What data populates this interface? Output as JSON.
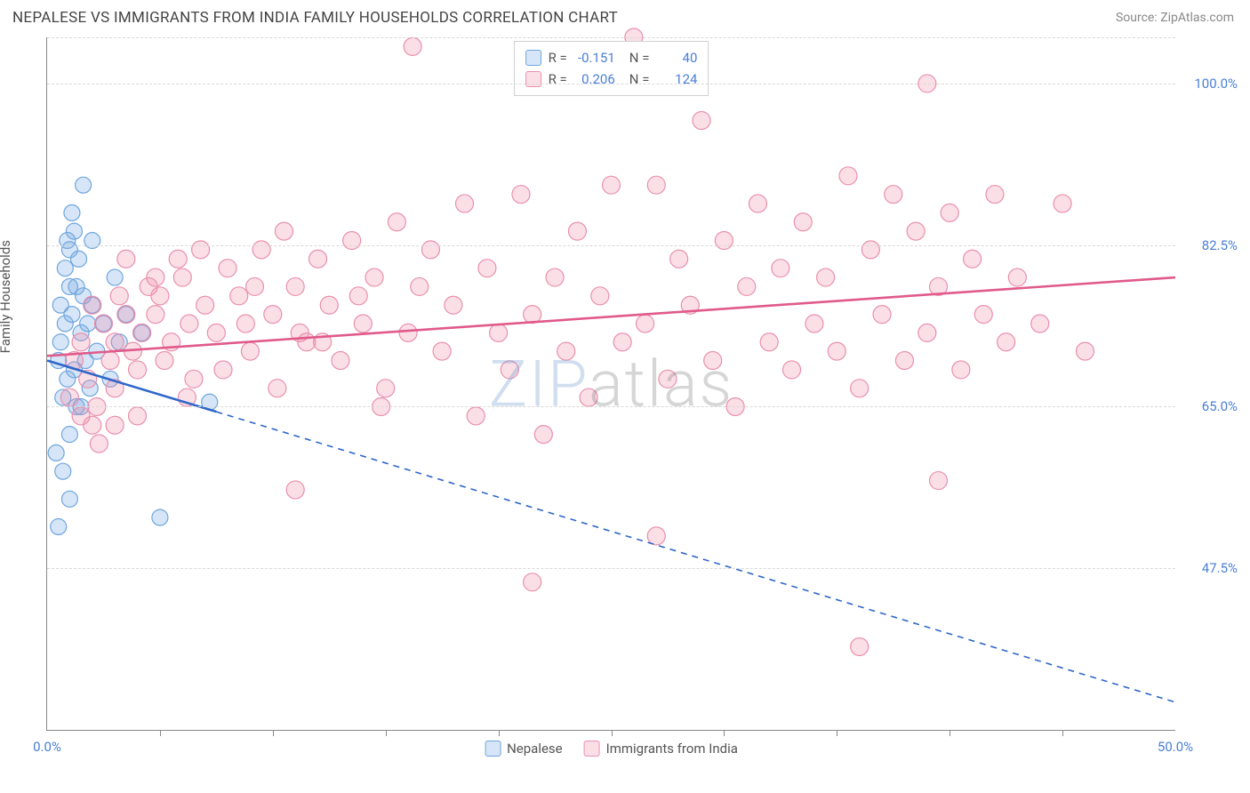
{
  "header": {
    "title": "NEPALESE VS IMMIGRANTS FROM INDIA FAMILY HOUSEHOLDS CORRELATION CHART",
    "source": "Source: ZipAtlas.com"
  },
  "watermark": {
    "part1": "ZIP",
    "part2": "atlas"
  },
  "chart": {
    "type": "scatter",
    "ylabel": "Family Households",
    "xlim": [
      0,
      50
    ],
    "ylim": [
      30,
      105
    ],
    "background_color": "#ffffff",
    "grid_color": "#d9d9d9",
    "axis_color": "#888888",
    "tick_label_color": "#4a7fd6",
    "tick_label_fontsize": 15,
    "y_ticks": [
      {
        "value": 47.5,
        "label": "47.5%"
      },
      {
        "value": 65.0,
        "label": "65.0%"
      },
      {
        "value": 82.5,
        "label": "82.5%"
      },
      {
        "value": 100.0,
        "label": "100.0%"
      },
      {
        "value": 105.0,
        "label": ""
      }
    ],
    "x_ticks_minor": [
      5,
      10,
      15,
      20,
      25,
      30,
      35,
      40,
      45
    ],
    "x_ticks_labeled": [
      {
        "value": 0,
        "label": "0.0%"
      },
      {
        "value": 50,
        "label": "50.0%"
      }
    ],
    "series": [
      {
        "id": "nepalese",
        "name": "Nepalese",
        "color_fill": "rgba(120,170,230,0.30)",
        "color_stroke": "#6fa6dd",
        "trend_color": "#2f67c9",
        "trend_solid_until_x": 7.5,
        "trend": {
          "x0": 0,
          "y0": 70.0,
          "x1": 50,
          "y1": 33.0
        },
        "R": "-0.151",
        "N": "40",
        "marker_radius": 9,
        "points": [
          [
            0.5,
            70
          ],
          [
            0.6,
            72
          ],
          [
            0.7,
            66
          ],
          [
            0.8,
            80
          ],
          [
            0.9,
            83
          ],
          [
            1.0,
            78
          ],
          [
            1.1,
            75
          ],
          [
            1.2,
            69
          ],
          [
            1.0,
            62
          ],
          [
            1.3,
            65
          ],
          [
            1.5,
            73
          ],
          [
            1.6,
            77
          ],
          [
            1.8,
            74
          ],
          [
            0.4,
            60
          ],
          [
            0.7,
            58
          ],
          [
            1.0,
            55
          ],
          [
            2.0,
            76
          ],
          [
            2.2,
            71
          ],
          [
            2.5,
            74
          ],
          [
            2.8,
            68
          ],
          [
            3.0,
            79
          ],
          [
            3.2,
            72
          ],
          [
            3.5,
            75
          ],
          [
            1.2,
            84
          ],
          [
            1.4,
            81
          ],
          [
            1.1,
            86
          ],
          [
            0.6,
            76
          ],
          [
            0.9,
            68
          ],
          [
            1.7,
            70
          ],
          [
            1.9,
            67
          ],
          [
            0.5,
            52
          ],
          [
            2.0,
            83
          ],
          [
            4.2,
            73
          ],
          [
            5.0,
            53
          ],
          [
            1.3,
            78
          ],
          [
            1.5,
            65
          ],
          [
            0.8,
            74
          ],
          [
            1.0,
            82
          ],
          [
            7.2,
            65.5
          ],
          [
            1.6,
            89
          ]
        ]
      },
      {
        "id": "india",
        "name": "Immigrants from India",
        "color_fill": "rgba(240,140,170,0.28)",
        "color_stroke": "#e98fae",
        "trend_color": "#e05a8a",
        "trend_solid_until_x": 50,
        "trend": {
          "x0": 0,
          "y0": 70.5,
          "x1": 50,
          "y1": 79.0
        },
        "R": "0.206",
        "N": "124",
        "marker_radius": 10,
        "points": [
          [
            1.0,
            66
          ],
          [
            1.2,
            70
          ],
          [
            1.5,
            72
          ],
          [
            1.8,
            68
          ],
          [
            2.0,
            63
          ],
          [
            2.2,
            65
          ],
          [
            2.5,
            74
          ],
          [
            2.8,
            70
          ],
          [
            3.0,
            72
          ],
          [
            3.2,
            77
          ],
          [
            3.5,
            75
          ],
          [
            3.8,
            71
          ],
          [
            4.0,
            69
          ],
          [
            4.2,
            73
          ],
          [
            4.5,
            78
          ],
          [
            4.8,
            75
          ],
          [
            5.0,
            77
          ],
          [
            5.5,
            72
          ],
          [
            6.0,
            79
          ],
          [
            6.3,
            74
          ],
          [
            6.5,
            68
          ],
          [
            5.8,
            81
          ],
          [
            7.0,
            76
          ],
          [
            7.5,
            73
          ],
          [
            8.0,
            80
          ],
          [
            8.5,
            77
          ],
          [
            9.0,
            71
          ],
          [
            9.5,
            82
          ],
          [
            10.0,
            75
          ],
          [
            10.5,
            84
          ],
          [
            11.0,
            78
          ],
          [
            11.5,
            72
          ],
          [
            12.0,
            81
          ],
          [
            12.5,
            76
          ],
          [
            13.0,
            70
          ],
          [
            13.5,
            83
          ],
          [
            14.0,
            74
          ],
          [
            14.5,
            79
          ],
          [
            15.0,
            67
          ],
          [
            15.5,
            85
          ],
          [
            16.0,
            73
          ],
          [
            16.5,
            78
          ],
          [
            17.0,
            82
          ],
          [
            17.5,
            71
          ],
          [
            18.0,
            76
          ],
          [
            16.2,
            104
          ],
          [
            18.5,
            87
          ],
          [
            19.0,
            64
          ],
          [
            19.5,
            80
          ],
          [
            20.0,
            73
          ],
          [
            20.5,
            69
          ],
          [
            21.0,
            88
          ],
          [
            21.5,
            75
          ],
          [
            22.0,
            62
          ],
          [
            22.5,
            79
          ],
          [
            23.0,
            71
          ],
          [
            23.5,
            84
          ],
          [
            24.0,
            66
          ],
          [
            24.5,
            77
          ],
          [
            25.0,
            89
          ],
          [
            25.5,
            72
          ],
          [
            26.0,
            105
          ],
          [
            26.5,
            74
          ],
          [
            27.0,
            89
          ],
          [
            27.5,
            68
          ],
          [
            28.0,
            81
          ],
          [
            28.5,
            76
          ],
          [
            29.0,
            96
          ],
          [
            29.5,
            70
          ],
          [
            30.0,
            83
          ],
          [
            30.5,
            65
          ],
          [
            31.0,
            78
          ],
          [
            31.5,
            87
          ],
          [
            32.0,
            72
          ],
          [
            32.5,
            80
          ],
          [
            33.0,
            69
          ],
          [
            27.0,
            51
          ],
          [
            33.5,
            85
          ],
          [
            34.0,
            74
          ],
          [
            21.5,
            46
          ],
          [
            34.5,
            79
          ],
          [
            35.0,
            71
          ],
          [
            35.5,
            90
          ],
          [
            36.0,
            67
          ],
          [
            36.5,
            82
          ],
          [
            37.0,
            75
          ],
          [
            37.5,
            88
          ],
          [
            38.0,
            70
          ],
          [
            38.5,
            84
          ],
          [
            39.0,
            73
          ],
          [
            39.5,
            78
          ],
          [
            40.0,
            86
          ],
          [
            40.5,
            69
          ],
          [
            41.0,
            81
          ],
          [
            41.5,
            75
          ],
          [
            39.0,
            100
          ],
          [
            42.0,
            88
          ],
          [
            42.5,
            72
          ],
          [
            43.0,
            79
          ],
          [
            44.0,
            74
          ],
          [
            45.0,
            87
          ],
          [
            46.0,
            71
          ],
          [
            11.0,
            56
          ],
          [
            36.0,
            39
          ],
          [
            2.0,
            76
          ],
          [
            3.0,
            67
          ],
          [
            4.0,
            64
          ],
          [
            5.2,
            70
          ],
          [
            6.2,
            66
          ],
          [
            3.5,
            81
          ],
          [
            4.8,
            79
          ],
          [
            6.8,
            82
          ],
          [
            7.8,
            69
          ],
          [
            8.8,
            74
          ],
          [
            9.2,
            78
          ],
          [
            10.2,
            67
          ],
          [
            11.2,
            73
          ],
          [
            12.2,
            72
          ],
          [
            13.8,
            77
          ],
          [
            14.8,
            65
          ],
          [
            39.5,
            57
          ],
          [
            1.5,
            64
          ],
          [
            2.3,
            61
          ],
          [
            3.0,
            63
          ]
        ]
      }
    ],
    "stats_legend": {
      "border_color": "#d0d0d0",
      "text_color": "#555555",
      "value_color": "#4a7fd6",
      "R_label": "R =",
      "N_label": "N ="
    },
    "bottom_legend": {
      "text_color": "#555555"
    }
  }
}
